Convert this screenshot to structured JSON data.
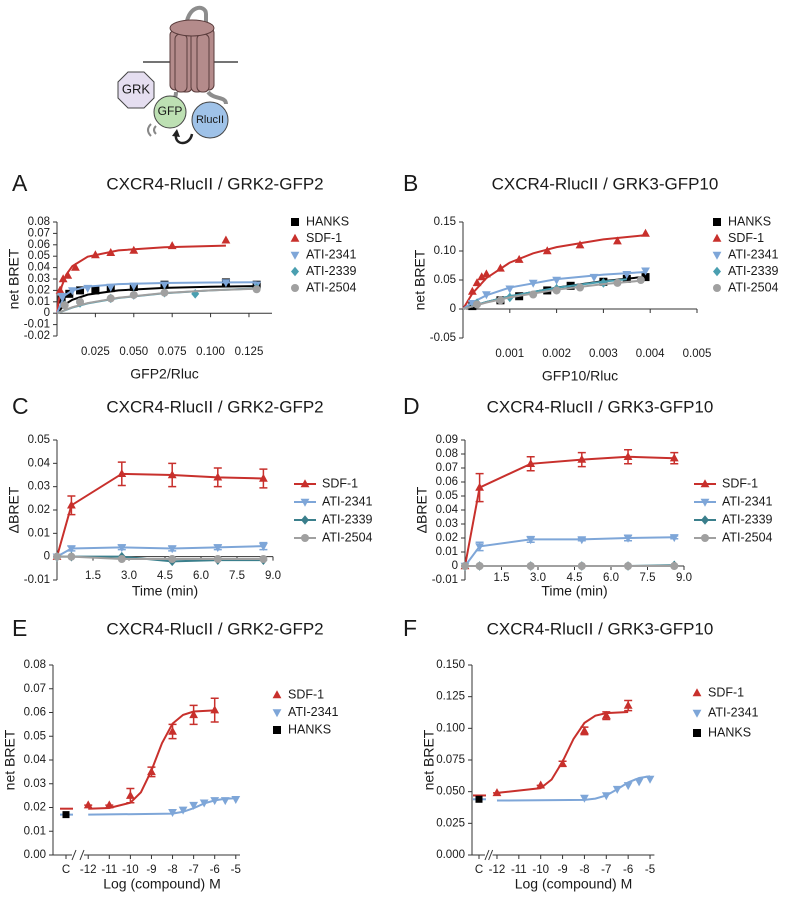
{
  "diagram": {
    "labels": [
      "GRK",
      "GFP",
      "RlucII"
    ]
  },
  "chart_data": [
    {
      "type": "scatter",
      "panel": "A",
      "title": "CXCR4-RlucII / GRK2-GFP2",
      "xlabel": "GFP2/Rluc",
      "ylabel": "net BRET",
      "xlim": [
        0,
        0.14
      ],
      "ylim": [
        -0.02,
        0.08
      ],
      "xticks": [
        0.025,
        {
          "value": 0.05,
          "label": "0.050"
        },
        0.075,
        {
          "value": 0.1,
          "label": "0.100"
        },
        0.125
      ],
      "yticks": [
        -0.02,
        -0.01,
        0,
        0.01,
        0.02,
        0.03,
        0.04,
        0.05,
        0.06,
        0.07,
        0.08
      ],
      "legend": "right",
      "series": [
        {
          "name": "HANKS",
          "color": "#000000",
          "marker": "square",
          "x": [
            0.003,
            0.008,
            0.015,
            0.025,
            0.035,
            0.05,
            0.07,
            0.11,
            0.13
          ],
          "values": [
            0.012,
            0.017,
            0.02,
            0.02,
            0.022,
            0.023,
            0.025,
            0.027,
            0.025
          ],
          "fit": {
            "x": [
              0,
              0.005,
              0.01,
              0.02,
              0.04,
              0.07,
              0.1,
              0.13
            ],
            "values": [
              0,
              0.0076,
              0.0118,
              0.0163,
              0.02,
              0.0222,
              0.0232,
              0.0238
            ]
          }
        },
        {
          "name": "SDF-1",
          "color": "#c8302c",
          "marker": "triangle",
          "x": [
            0.002,
            0.004,
            0.007,
            0.012,
            0.025,
            0.035,
            0.05,
            0.075,
            0.11
          ],
          "values": [
            0.02,
            0.03,
            0.033,
            0.04,
            0.051,
            0.053,
            0.055,
            0.059,
            0.064
          ],
          "fit": {
            "x": [
              0,
              0.001,
              0.003,
              0.006,
              0.01,
              0.02,
              0.04,
              0.07,
              0.11
            ],
            "values": [
              0,
              0.0103,
              0.0233,
              0.0338,
              0.0413,
              0.0496,
              0.0551,
              0.0579,
              0.0593
            ]
          }
        },
        {
          "name": "ATI-2341",
          "color": "#7ea6d8",
          "marker": "triangle-down",
          "x": [
            0.003,
            0.01,
            0.02,
            0.035,
            0.05,
            0.07,
            0.11,
            0.13
          ],
          "values": [
            0.015,
            0.02,
            0.022,
            0.023,
            0.024,
            0.025,
            0.027,
            0.025
          ],
          "fit": {
            "x": [
              0,
              0.005,
              0.01,
              0.02,
              0.04,
              0.07,
              0.1,
              0.13
            ],
            "values": [
              0,
              0.0156,
              0.02,
              0.0233,
              0.0255,
              0.0265,
              0.0269,
              0.0272
            ]
          }
        },
        {
          "name": "ATI-2339",
          "color": "#4a9fb0",
          "marker": "diamond",
          "x": [
            0.005,
            0.015,
            0.035,
            0.05,
            0.07,
            0.09,
            0.13
          ],
          "values": [
            0.007,
            0.009,
            0.013,
            0.016,
            0.018,
            0.017,
            0.022
          ],
          "fit": {
            "x": [
              0,
              0.01,
              0.02,
              0.04,
              0.07,
              0.1,
              0.13
            ],
            "values": [
              0,
              0.005,
              0.0086,
              0.0133,
              0.0175,
              0.02,
              0.0217
            ]
          }
        },
        {
          "name": "ATI-2504",
          "color": "#a0a0a0",
          "marker": "circle",
          "x": [
            0.005,
            0.015,
            0.035,
            0.05,
            0.07,
            0.13
          ],
          "values": [
            0.007,
            0.01,
            0.013,
            0.016,
            0.018,
            0.021
          ],
          "fit": {
            "x": [
              0,
              0.01,
              0.02,
              0.04,
              0.07,
              0.1,
              0.13
            ],
            "values": [
              0,
              0.0053,
              0.0089,
              0.0136,
              0.0177,
              0.02,
              0.0215
            ]
          }
        }
      ]
    },
    {
      "type": "scatter",
      "panel": "B",
      "title": "CXCR4-RlucII / GRK3-GFP10",
      "xlabel": "GFP10/Rluc",
      "ylabel": "net BRET",
      "xlim": [
        0,
        0.005
      ],
      "ylim": [
        -0.05,
        0.15
      ],
      "xticks": [
        0.001,
        0.002,
        0.003,
        0.004,
        0.005
      ],
      "yticks": [
        -0.05,
        0,
        0.05,
        {
          "value": 0.1,
          "label": "0.10"
        },
        0.15
      ],
      "legend": "right",
      "series": [
        {
          "name": "HANKS",
          "color": "#000000",
          "marker": "square",
          "x": [
            0.0002,
            0.0008,
            0.0012,
            0.0018,
            0.0023,
            0.003,
            0.0035,
            0.0039
          ],
          "values": [
            0.005,
            0.015,
            0.022,
            0.032,
            0.04,
            0.047,
            0.052,
            0.055
          ],
          "fit": {
            "x": [
              0,
              0.0005,
              0.001,
              0.002,
              0.003,
              0.0039
            ],
            "values": [
              0,
              0.012,
              0.0218,
              0.0369,
              0.048,
              0.0557
            ]
          }
        },
        {
          "name": "SDF-1",
          "color": "#c8302c",
          "marker": "triangle",
          "x": [
            0.0002,
            0.0003,
            0.0004,
            0.0005,
            0.0008,
            0.0012,
            0.0018,
            0.0025,
            0.0033,
            0.0039
          ],
          "values": [
            0.03,
            0.045,
            0.055,
            0.06,
            0.07,
            0.085,
            0.1,
            0.11,
            0.117,
            0.13
          ],
          "fit": {
            "x": [
              0,
              0.0002,
              0.0005,
              0.001,
              0.0015,
              0.002,
              0.003,
              0.0039
            ],
            "values": [
              0,
              0.0267,
              0.0533,
              0.08,
              0.096,
              0.1067,
              0.12,
              0.1273
            ]
          }
        },
        {
          "name": "ATI-2341",
          "color": "#7ea6d8",
          "marker": "triangle-down",
          "x": [
            0.0002,
            0.0005,
            0.001,
            0.0015,
            0.002,
            0.0028,
            0.0035,
            0.0039
          ],
          "values": [
            0.01,
            0.025,
            0.035,
            0.045,
            0.05,
            0.055,
            0.06,
            0.066
          ],
          "fit": {
            "x": [
              0,
              0.0002,
              0.0005,
              0.001,
              0.002,
              0.003,
              0.0039
            ],
            "values": [
              0,
              0.0113,
              0.0236,
              0.037,
              0.0515,
              0.0593,
              0.0638
            ]
          }
        },
        {
          "name": "ATI-2339",
          "color": "#4a9fb0",
          "marker": "diamond",
          "x": [
            0.0003,
            0.001,
            0.002,
            0.003
          ],
          "values": [
            0.01,
            0.02,
            0.035,
            0.045
          ],
          "fit": {
            "x": [
              0,
              0.0005,
              0.001,
              0.002,
              0.003,
              0.0035
            ],
            "values": [
              0,
              0.0122,
              0.022,
              0.0367,
              0.0471,
              0.0513
            ]
          }
        },
        {
          "name": "ATI-2504",
          "color": "#a0a0a0",
          "marker": "circle",
          "x": [
            0.0003,
            0.0008,
            0.0015,
            0.002,
            0.0025,
            0.0033,
            0.0038
          ],
          "values": [
            0.008,
            0.015,
            0.025,
            0.032,
            0.037,
            0.045,
            0.05
          ],
          "fit": {
            "x": [
              0,
              0.0005,
              0.001,
              0.002,
              0.003,
              0.0038
            ],
            "values": [
              0,
              0.0111,
              0.02,
              0.0333,
              0.0429,
              0.0487
            ]
          }
        }
      ]
    },
    {
      "type": "line",
      "panel": "C",
      "title": "CXCR4-RlucII / GRK2-GFP2",
      "xlabel": "Time (min)",
      "ylabel": "ΔBRET",
      "xlim": [
        0,
        9
      ],
      "ylim": [
        -0.01,
        0.05
      ],
      "xticks": [
        1.5,
        {
          "value": 3,
          "label": "3.0"
        },
        4.5,
        {
          "value": 6,
          "label": "6.0"
        },
        7.5,
        {
          "value": 9,
          "label": "9.0"
        }
      ],
      "yticks": [
        -0.01,
        0,
        0.01,
        0.02,
        0.03,
        0.04,
        0.05
      ],
      "legend": "right",
      "x": [
        0,
        0.6,
        2.7,
        4.8,
        6.7,
        8.6
      ],
      "series": [
        {
          "name": "SDF-1",
          "color": "#c8302c",
          "marker": "triangle",
          "values": [
            0,
            0.022,
            0.0355,
            0.035,
            0.034,
            0.0335
          ],
          "error": [
            0,
            0.004,
            0.005,
            0.005,
            0.004,
            0.004
          ]
        },
        {
          "name": "ATI-2341",
          "color": "#7ea6d8",
          "marker": "triangle-down",
          "values": [
            0,
            0.0035,
            0.004,
            0.0035,
            0.004,
            0.0045
          ],
          "error": [
            0,
            0.001,
            0.001,
            0.001,
            0.001,
            0.0015
          ]
        },
        {
          "name": "ATI-2339",
          "color": "#3b7f8c",
          "marker": "diamond",
          "values": [
            0,
            0,
            0,
            -0.002,
            -0.0015,
            -0.0015
          ]
        },
        {
          "name": "ATI-2504",
          "color": "#a0a0a0",
          "marker": "circle",
          "values": [
            0,
            0,
            -0.001,
            -0.001,
            -0.001,
            -0.001
          ]
        }
      ]
    },
    {
      "type": "line",
      "panel": "D",
      "title": "CXCR4-RlucII / GRK3-GFP10",
      "xlabel": "Time (min)",
      "ylabel": "ΔBRET",
      "xlim": [
        0,
        9
      ],
      "ylim": [
        -0.01,
        0.09
      ],
      "xticks": [
        1.5,
        {
          "value": 3,
          "label": "3.0"
        },
        4.5,
        {
          "value": 6,
          "label": "6.0"
        },
        7.5,
        {
          "value": 9,
          "label": "9.0"
        }
      ],
      "yticks": [
        -0.01,
        0,
        0.01,
        0.02,
        0.03,
        0.04,
        0.05,
        0.06,
        0.07,
        0.08,
        0.09
      ],
      "legend": "right",
      "x": [
        0,
        0.6,
        2.7,
        4.8,
        6.7,
        8.6
      ],
      "series": [
        {
          "name": "SDF-1",
          "color": "#c8302c",
          "marker": "triangle",
          "values": [
            0,
            0.056,
            0.073,
            0.076,
            0.078,
            0.077
          ],
          "error": [
            0,
            0.01,
            0.005,
            0.005,
            0.005,
            0.004
          ]
        },
        {
          "name": "ATI-2341",
          "color": "#7ea6d8",
          "marker": "triangle-down",
          "values": [
            0,
            0.014,
            0.019,
            0.019,
            0.02,
            0.0205
          ],
          "error": [
            0,
            0.003,
            0.002,
            0.001,
            0.002,
            0.001
          ]
        },
        {
          "name": "ATI-2339",
          "color": "#3b7f8c",
          "marker": "diamond",
          "values": [
            0,
            0,
            0,
            0,
            0,
            0.0005
          ]
        },
        {
          "name": "ATI-2504",
          "color": "#a0a0a0",
          "marker": "circle",
          "values": [
            0,
            0,
            0,
            0,
            0,
            0
          ]
        }
      ]
    },
    {
      "type": "dose_response",
      "panel": "E",
      "title": "CXCR4-RlucII / GRK2-GFP2",
      "xlabel": "Log (compound) M",
      "ylabel": "net BRET",
      "control_label": "C",
      "xlim": [
        -12.2,
        -4.8
      ],
      "ylim": [
        0,
        0.08
      ],
      "xticks": [
        -12,
        -11,
        -10,
        -9,
        -8,
        -7,
        -6,
        -5
      ],
      "yticks": [
        {
          "value": 0,
          "label": "0.00"
        },
        0.01,
        0.02,
        0.03,
        0.04,
        0.05,
        0.06,
        0.07,
        0.08
      ],
      "legend": "right",
      "series": [
        {
          "name": "SDF-1",
          "color": "#c8302c",
          "marker": "triangle",
          "control": 0.0195,
          "x": [
            -12,
            -11,
            -10,
            -9,
            -8,
            -7,
            -6
          ],
          "values": [
            0.021,
            0.021,
            0.025,
            0.035,
            0.052,
            0.059,
            0.061
          ],
          "error": [
            0,
            0,
            0.003,
            0.002,
            0.003,
            0.004,
            0.005
          ],
          "fit": {
            "x": [
              -12,
              -11,
              -10,
              -9.5,
              -9,
              -8.5,
              -8,
              -7.5,
              -7,
              -6
            ],
            "values": [
              0.0195,
              0.0198,
              0.022,
              0.0264,
              0.0356,
              0.0471,
              0.0553,
              0.059,
              0.0604,
              0.0609
            ]
          }
        },
        {
          "name": "ATI-2341",
          "color": "#7ea6d8",
          "marker": "triangle-down",
          "control": 0.017,
          "x": [
            -8,
            -7.5,
            -7,
            -6.5,
            -6,
            -5.5,
            -5
          ],
          "values": [
            0.018,
            0.019,
            0.021,
            0.022,
            0.023,
            0.023,
            0.0235
          ],
          "fit": {
            "x": [
              -12,
              -8,
              -7.5,
              -7,
              -6.5,
              -6,
              -5.5,
              -5
            ],
            "values": [
              0.017,
              0.0174,
              0.0182,
              0.0197,
              0.0217,
              0.023,
              0.0237,
              0.0239
            ]
          }
        },
        {
          "name": "HANKS",
          "color": "#000000",
          "marker": "square",
          "control": 0.017
        }
      ]
    },
    {
      "type": "dose_response",
      "panel": "F",
      "title": "CXCR4-RlucII / GRK3-GFP10",
      "xlabel": "Log (compound) M",
      "ylabel": "net BRET",
      "control_label": "C",
      "xlim": [
        -12.2,
        -4.8
      ],
      "ylim": [
        0,
        0.15
      ],
      "xticks": [
        -12,
        -11,
        -10,
        -9,
        -8,
        -7,
        -6,
        -5
      ],
      "yticks": [
        {
          "value": 0,
          "label": "0.000"
        },
        0.025,
        {
          "value": 0.05,
          "label": "0.050"
        },
        0.075,
        {
          "value": 0.1,
          "label": "0.100"
        },
        0.125,
        {
          "value": 0.15,
          "label": "0.150"
        }
      ],
      "legend": "right",
      "series": [
        {
          "name": "SDF-1",
          "color": "#c8302c",
          "marker": "triangle",
          "control": 0.047,
          "x": [
            -12,
            -10,
            -9,
            -8,
            -7,
            -6
          ],
          "values": [
            0.049,
            0.055,
            0.072,
            0.098,
            0.11,
            0.118
          ],
          "error": [
            0,
            0,
            0.002,
            0.003,
            0.003,
            0.004
          ],
          "fit": {
            "x": [
              -12,
              -10,
              -9.5,
              -9,
              -8.5,
              -8,
              -7.5,
              -7,
              -6
            ],
            "values": [
              0.049,
              0.0528,
              0.0596,
              0.0738,
              0.0916,
              0.1043,
              0.11,
              0.112,
              0.1129
            ]
          }
        },
        {
          "name": "ATI-2341",
          "color": "#7ea6d8",
          "marker": "triangle-down",
          "control": 0.044,
          "x": [
            -8,
            -7,
            -6.5,
            -6,
            -5.5,
            -5
          ],
          "values": [
            0.045,
            0.047,
            0.052,
            0.055,
            0.058,
            0.06
          ],
          "fit": {
            "x": [
              -12,
              -8,
              -7.5,
              -7,
              -6.5,
              -6,
              -5.5,
              -5
            ],
            "values": [
              0.043,
              0.0435,
              0.0445,
              0.047,
              0.0519,
              0.0573,
              0.0608,
              0.0622
            ]
          }
        },
        {
          "name": "HANKS",
          "color": "#000000",
          "marker": "square",
          "control": 0.044
        }
      ]
    }
  ]
}
